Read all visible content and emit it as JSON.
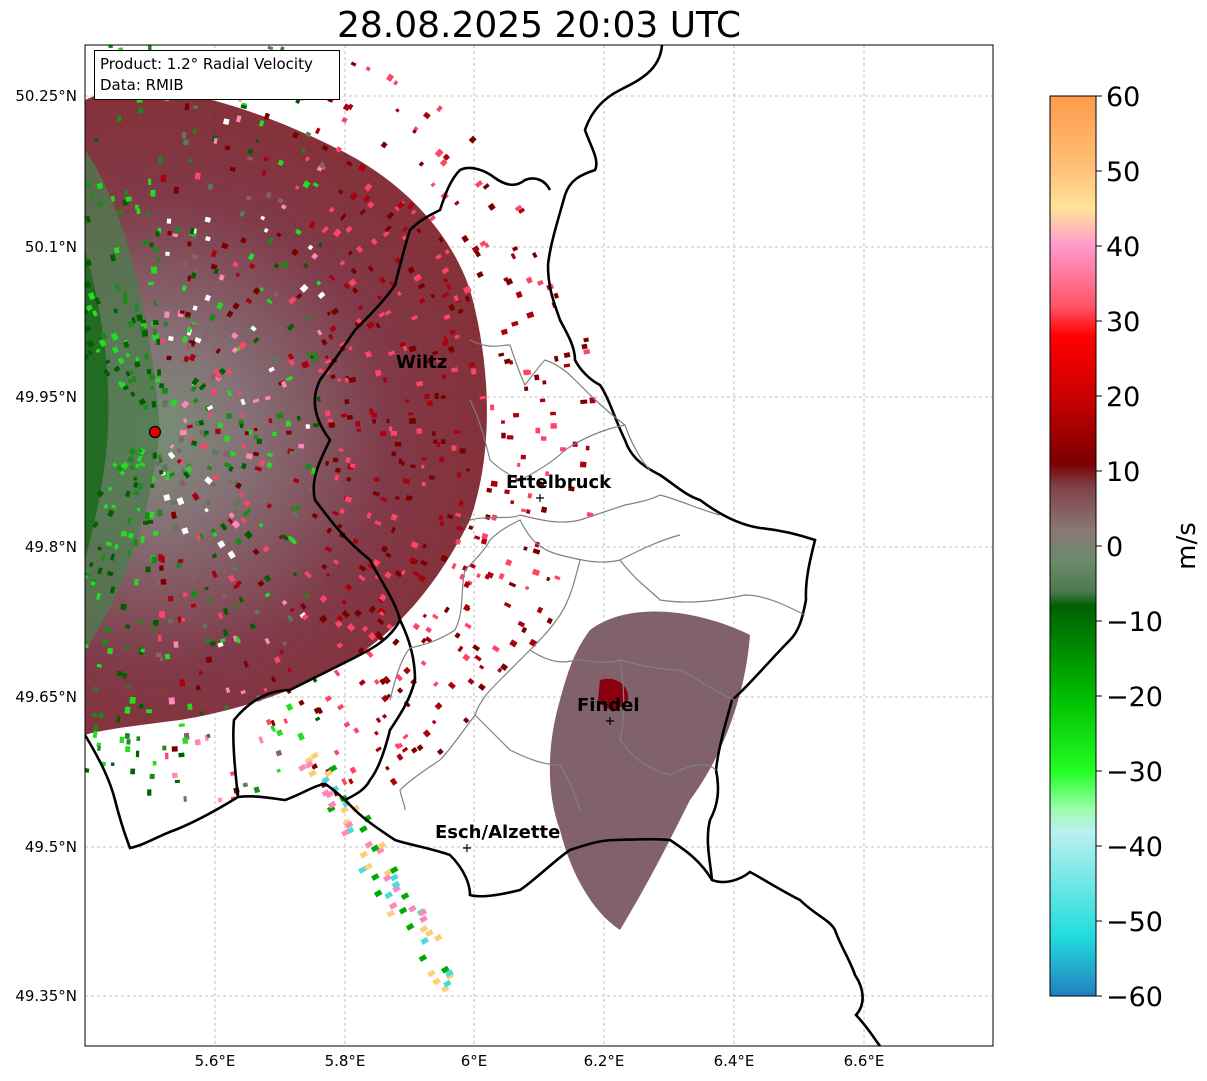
{
  "title": "28.08.2025 20:03 UTC",
  "info": {
    "product": "Product: 1.2° Radial Velocity",
    "data": "Data: RMIB"
  },
  "axes": {
    "x_ticks": [
      "5.6°E",
      "5.8°E",
      "6°E",
      "6.2°E",
      "6.4°E",
      "6.6°E"
    ],
    "y_ticks": [
      "50.25°N",
      "50.1°N",
      "49.95°N",
      "49.8°N",
      "49.65°N",
      "49.5°N",
      "49.35°N"
    ]
  },
  "cities": [
    {
      "name": "Wiltz",
      "lon": 5.93,
      "lat": 49.97
    },
    {
      "name": "Ettelbruck",
      "lon": 6.1,
      "lat": 49.85
    },
    {
      "name": "Findel",
      "lon": 6.21,
      "lat": 49.63
    },
    {
      "name": "Esch/Alzette",
      "lon": 5.99,
      "lat": 49.5
    }
  ],
  "radar_site": {
    "lon": 5.51,
    "lat": 49.91
  },
  "colorbar": {
    "label": "m/s",
    "ticks": [
      "60",
      "50",
      "40",
      "30",
      "20",
      "10",
      "0",
      "−10",
      "−20",
      "−30",
      "−40",
      "−50",
      "−60"
    ],
    "range": [
      -60,
      60
    ],
    "stops": [
      {
        "v": 60,
        "c": "#ff9a4a"
      },
      {
        "v": 50,
        "c": "#ffc27a"
      },
      {
        "v": 45,
        "c": "#ffe39a"
      },
      {
        "v": 40,
        "c": "#ff99cc"
      },
      {
        "v": 32,
        "c": "#ff5566"
      },
      {
        "v": 28,
        "c": "#ff0000"
      },
      {
        "v": 20,
        "c": "#cc0000"
      },
      {
        "v": 11,
        "c": "#7a0000"
      },
      {
        "v": 8,
        "c": "#7f4048"
      },
      {
        "v": 2,
        "c": "#8a7878"
      },
      {
        "v": -2,
        "c": "#6a8a6a"
      },
      {
        "v": -6,
        "c": "#4f7a4f"
      },
      {
        "v": -8,
        "c": "#006000"
      },
      {
        "v": -20,
        "c": "#00bb00"
      },
      {
        "v": -30,
        "c": "#22ff22"
      },
      {
        "v": -35,
        "c": "#99ffaa"
      },
      {
        "v": -38,
        "c": "#bbf0f0"
      },
      {
        "v": -52,
        "c": "#22dddd"
      },
      {
        "v": -60,
        "c": "#2080c0"
      }
    ]
  }
}
